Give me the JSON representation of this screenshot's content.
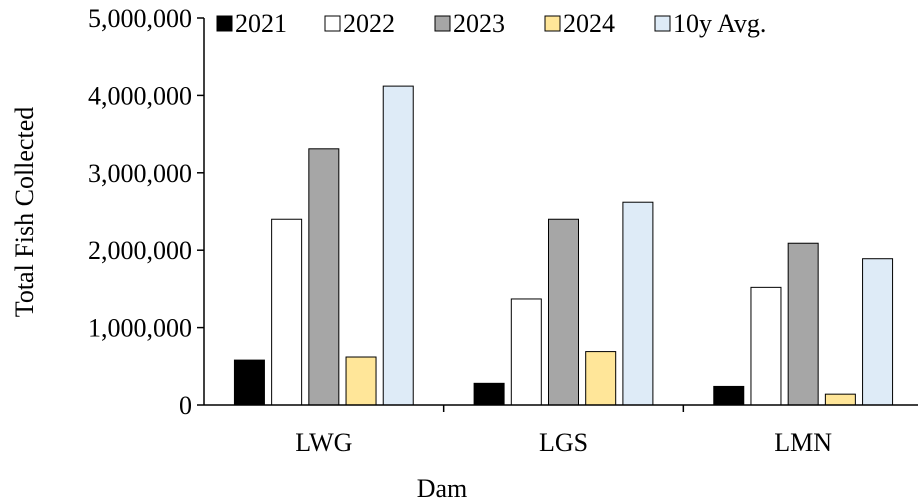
{
  "chart_data": {
    "type": "bar",
    "title": "",
    "xlabel": "Dam",
    "ylabel": "Total Fish Collected",
    "categories": [
      "LWG",
      "LGS",
      "LMN"
    ],
    "ylim": [
      0,
      5000000
    ],
    "yticks": [
      0,
      1000000,
      2000000,
      3000000,
      4000000,
      5000000
    ],
    "ytick_labels": [
      "0",
      "1,000,000",
      "2,000,000",
      "3,000,000",
      "4,000,000",
      "5,000,000"
    ],
    "grid": false,
    "legend_position": "top",
    "series": [
      {
        "name": "2021",
        "color": "#000000",
        "values": [
          580000,
          280000,
          240000
        ]
      },
      {
        "name": "2022",
        "color": "#ffffff",
        "values": [
          2400000,
          1370000,
          1520000
        ]
      },
      {
        "name": "2023",
        "color": "#a6a6a6",
        "values": [
          3310000,
          2400000,
          2090000
        ]
      },
      {
        "name": "2024",
        "color": "#ffe699",
        "values": [
          620000,
          690000,
          140000
        ]
      },
      {
        "name": "10y Avg.",
        "color": "#deebf7",
        "values": [
          4120000,
          2620000,
          1890000
        ]
      }
    ]
  }
}
